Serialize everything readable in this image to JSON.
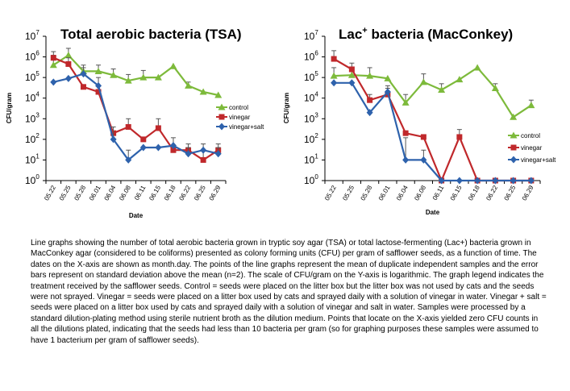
{
  "caption": "Line graphs showing the number of total aerobic bacteria grown in tryptic soy agar (TSA) or total lactose-fermenting (Lac+) bacteria grown in MacConkey agar (considered to be coliforms) presented as colony forming units (CFU) per gram of safflower seeds, as a function of time.  The dates on the X-axis are shown as month.day.  The points of the line graphs represent the mean of duplicate independent samples and the error bars represent on standard deviation above the mean (n=2).  The scale of CFU/gram on the Y-axis is logarithmic.  The graph legend indicates the treatment received by the safflower seeds.  Control = seeds were placed on the litter box but the litter box was not used by cats and the seeds were not sprayed.  Vinegar = seeds were placed on a litter box used by cats and sprayed daily with a solution of vinegar in water.  Vinegar + salt = seeds were placed on a litter box used by cats and sprayed daily with a solution of vinegar and salt in water.  Samples were processed by a standard dilution-plating method using sterile nutrient broth as the dilution medium.  Points that locate on the X-axis yielded zero CFU counts in all the dilutions plated, indicating that the seeds had less than 10 bacteria per gram (so for graphing purposes these samples were assumed to have 1 bacterium per gram of safflower seeds).",
  "chart_data": [
    {
      "type": "line",
      "title": "Total aerobic bacteria (TSA)",
      "xlabel": "Date",
      "ylabel": "CFU/gram",
      "yscale": "log",
      "ylim": [
        1,
        10000000
      ],
      "ytick_labels": [
        {
          "base": "10",
          "exp": "0"
        },
        {
          "base": "10",
          "exp": "1"
        },
        {
          "base": "10",
          "exp": "2"
        },
        {
          "base": "10",
          "exp": "3"
        },
        {
          "base": "10",
          "exp": "4"
        },
        {
          "base": "10",
          "exp": "5"
        },
        {
          "base": "10",
          "exp": "6"
        },
        {
          "base": "10",
          "exp": "7"
        }
      ],
      "x": [
        "05.22",
        "05.25",
        "05.28",
        "06.01",
        "06.04",
        "06.08",
        "06.11",
        "06.15",
        "06.18",
        "06.22",
        "06.25",
        "06.29"
      ],
      "legend_position": "right",
      "series": [
        {
          "name": "control",
          "color": "#7dba3b",
          "marker": "triangle",
          "values": [
            400000,
            1200000,
            200000,
            200000,
            130000,
            70000,
            100000,
            100000,
            350000,
            40000,
            20000,
            14000
          ],
          "error_upper": [
            1200000,
            2600000,
            400000,
            400000,
            260000,
            140000,
            220000,
            null,
            null,
            60000,
            null,
            null
          ]
        },
        {
          "name": "vinegar",
          "color": "#c0282b",
          "marker": "square",
          "values": [
            900000,
            450000,
            35000,
            20000,
            200,
            400,
            100,
            350,
            30,
            30,
            10,
            30
          ],
          "error_upper": [
            1800000,
            900000,
            null,
            null,
            null,
            1000,
            null,
            1000,
            null,
            60,
            30,
            60
          ]
        },
        {
          "name": "vinegar+salt",
          "color": "#2e62ac",
          "marker": "diamond",
          "values": [
            60000,
            90000,
            150000,
            40000,
            100,
            10,
            40,
            40,
            50,
            20,
            30,
            20
          ],
          "error_upper": [
            null,
            null,
            300000,
            100000,
            400,
            30,
            null,
            null,
            120,
            40,
            60,
            40
          ]
        }
      ]
    },
    {
      "type": "line",
      "title": "Lac⁺ bacteria (MacConkey)",
      "title_main": "Lac",
      "title_sup": "+",
      "title_rest": " bacteria (MacConkey)",
      "xlabel": "Date",
      "ylabel": "CFU/gram",
      "yscale": "log",
      "ylim": [
        1,
        10000000
      ],
      "ytick_labels": [
        {
          "base": "10",
          "exp": "0"
        },
        {
          "base": "10",
          "exp": "1"
        },
        {
          "base": "10",
          "exp": "2"
        },
        {
          "base": "10",
          "exp": "3"
        },
        {
          "base": "10",
          "exp": "4"
        },
        {
          "base": "10",
          "exp": "5"
        },
        {
          "base": "10",
          "exp": "6"
        },
        {
          "base": "10",
          "exp": "7"
        }
      ],
      "x": [
        "05.22",
        "05.25",
        "05.28",
        "06.01",
        "06.04",
        "06.08",
        "06.11",
        "06.15",
        "06.18",
        "06.22",
        "06.25",
        "06.29"
      ],
      "legend_position": "right",
      "series": [
        {
          "name": "control",
          "color": "#7dba3b",
          "marker": "triangle",
          "values": [
            120000,
            130000,
            120000,
            90000,
            6000,
            60000,
            25000,
            80000,
            300000,
            30000,
            1200,
            4500
          ],
          "error_upper": [
            300000,
            300000,
            300000,
            null,
            15000,
            150000,
            50000,
            null,
            null,
            50000,
            null,
            8000
          ]
        },
        {
          "name": "vinegar",
          "color": "#c0282b",
          "marker": "square",
          "values": [
            800000,
            250000,
            8000,
            15000,
            200,
            130,
            1,
            130,
            1,
            1,
            1,
            1
          ],
          "error_upper": [
            2000000,
            500000,
            15000,
            30000,
            null,
            null,
            null,
            300,
            null,
            null,
            null,
            null
          ]
        },
        {
          "name": "vinegar+salt",
          "color": "#2e62ac",
          "marker": "diamond",
          "values": [
            55000,
            55000,
            2000,
            20000,
            10,
            10,
            1,
            1,
            1,
            1,
            1,
            1
          ],
          "error_upper": [
            null,
            null,
            null,
            40000,
            120,
            30,
            null,
            null,
            null,
            null,
            null,
            null
          ]
        }
      ]
    }
  ]
}
